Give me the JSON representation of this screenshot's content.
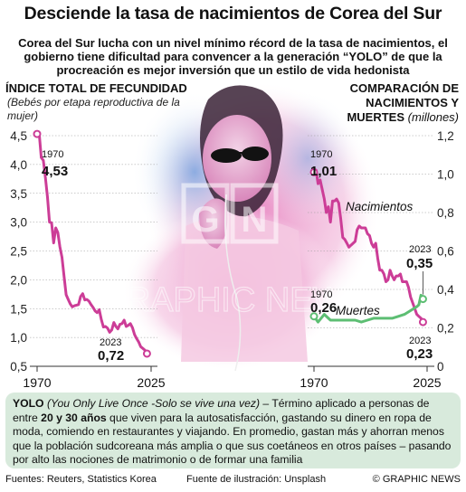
{
  "title": "Desciende la tasa de nacimientos de Corea del Sur",
  "subtitle": "Corea del Sur lucha con un nivel mínimo récord de la tasa de nacimientos, el gobierno tiene dificultad para convencer a la generación “YOLO” de que la procreación es mejor inversión que un estilo de vida hedonista",
  "watermark": "GRAPHIC NEWS",
  "colors": {
    "birth_line": "#cc3d97",
    "death_line": "#5dbe73",
    "note_bg": "#d8eadc",
    "photo_pink": "#e98fc6",
    "photo_blue": "#7aa6e0"
  },
  "note": {
    "term": "YOLO",
    "term_expansion": "(You Only Live Once -Solo se vive una vez)",
    "text_1": " – Término aplicado a personas de entre ",
    "age_range": "20 y 30 años",
    "text_2": " que viven para la autosatisfacción, gastando su dinero en ropa de moda, comiendo en restaurantes y viajando. En promedio, gastan más y ahorran menos que la población sudcoreana más amplia o que sus coetáneos en otros países – pasando por alto las nociones de matrimonio o de formar una familia"
  },
  "footer": {
    "sources": "Fuentes: Reuters, Statistics Korea",
    "illustration": "Fuente de ilustración: Unsplash",
    "credit": "© GRAPHIC NEWS"
  },
  "chart_data": [
    {
      "type": "line",
      "title": "ÍNDICE TOTAL DE FECUNDIDAD",
      "subtitle": "(Bebés por etapa reproductiva de la mujer)",
      "xlim": [
        1970,
        2025
      ],
      "ylim": [
        0.5,
        4.5
      ],
      "yticks": [
        "0,5",
        "1,0",
        "1,5",
        "2,0",
        "2,5",
        "3,0",
        "3,5",
        "4,0",
        "4,5"
      ],
      "xticks": [
        "1970",
        "2025"
      ],
      "series": [
        {
          "name": "",
          "x": [
            1970,
            1971,
            1972,
            1973,
            1974,
            1975,
            1976,
            1977,
            1978,
            1979,
            1980,
            1981,
            1982,
            1983,
            1984,
            1985,
            1986,
            1987,
            1988,
            1989,
            1990,
            1991,
            1992,
            1993,
            1994,
            1995,
            1996,
            1997,
            1998,
            1999,
            2000,
            2001,
            2002,
            2003,
            2004,
            2005,
            2006,
            2007,
            2008,
            2009,
            2010,
            2011,
            2012,
            2013,
            2014,
            2015,
            2016,
            2017,
            2018,
            2019,
            2020,
            2021,
            2022,
            2023
          ],
          "values": [
            4.53,
            4.54,
            4.12,
            4.07,
            3.77,
            3.43,
            3.0,
            2.99,
            2.64,
            2.9,
            2.82,
            2.57,
            2.39,
            2.06,
            1.74,
            1.66,
            1.58,
            1.53,
            1.55,
            1.56,
            1.57,
            1.71,
            1.76,
            1.65,
            1.66,
            1.63,
            1.57,
            1.52,
            1.46,
            1.43,
            1.48,
            1.31,
            1.18,
            1.19,
            1.16,
            1.09,
            1.13,
            1.26,
            1.19,
            1.15,
            1.23,
            1.24,
            1.3,
            1.19,
            1.21,
            1.24,
            1.17,
            1.05,
            0.98,
            0.92,
            0.84,
            0.81,
            0.78,
            0.72
          ]
        }
      ],
      "annotations": [
        {
          "year": "1970",
          "value": "4,53"
        },
        {
          "year": "2023",
          "value": "0,72"
        }
      ]
    },
    {
      "type": "line",
      "title": "COMPARACIÓN DE NACIMIENTOS Y MUERTES",
      "unit": "(millones)",
      "xlim": [
        1970,
        2025
      ],
      "ylim": [
        0,
        1.2
      ],
      "yticks": [
        "0",
        "0,2",
        "0,4",
        "0,6",
        "0,8",
        "1,0",
        "1,2"
      ],
      "xticks": [
        "1970",
        "2025"
      ],
      "series": [
        {
          "name": "Nacimientos",
          "x": [
            1970,
            1971,
            1972,
            1973,
            1974,
            1975,
            1976,
            1977,
            1978,
            1979,
            1980,
            1981,
            1982,
            1983,
            1984,
            1985,
            1986,
            1987,
            1988,
            1989,
            1990,
            1991,
            1992,
            1993,
            1994,
            1995,
            1996,
            1997,
            1998,
            1999,
            2000,
            2001,
            2002,
            2003,
            2004,
            2005,
            2006,
            2007,
            2008,
            2009,
            2010,
            2011,
            2012,
            2013,
            2014,
            2015,
            2016,
            2017,
            2018,
            2019,
            2020,
            2021,
            2022,
            2023
          ],
          "values": [
            1.01,
            1.02,
            0.95,
            0.97,
            0.92,
            0.87,
            0.8,
            0.83,
            0.75,
            0.86,
            0.86,
            0.87,
            0.85,
            0.77,
            0.67,
            0.66,
            0.64,
            0.62,
            0.63,
            0.64,
            0.65,
            0.71,
            0.73,
            0.72,
            0.72,
            0.72,
            0.69,
            0.68,
            0.64,
            0.62,
            0.64,
            0.56,
            0.5,
            0.5,
            0.48,
            0.44,
            0.45,
            0.5,
            0.47,
            0.45,
            0.47,
            0.47,
            0.48,
            0.44,
            0.44,
            0.44,
            0.41,
            0.36,
            0.33,
            0.3,
            0.27,
            0.26,
            0.25,
            0.23
          ]
        },
        {
          "name": "Muertes",
          "x": [
            1970,
            1972,
            1975,
            1978,
            1981,
            1984,
            1987,
            1990,
            1993,
            1996,
            1999,
            2002,
            2005,
            2008,
            2011,
            2014,
            2017,
            2020,
            2021,
            2022,
            2023
          ],
          "values": [
            0.26,
            0.23,
            0.27,
            0.24,
            0.24,
            0.24,
            0.24,
            0.24,
            0.23,
            0.24,
            0.25,
            0.25,
            0.25,
            0.25,
            0.26,
            0.27,
            0.29,
            0.31,
            0.32,
            0.37,
            0.35
          ]
        }
      ],
      "annotations": [
        {
          "year": "1970",
          "value": "1,01",
          "series": "Nacimientos"
        },
        {
          "year": "1970",
          "value": "0,26",
          "series": "Muertes"
        },
        {
          "year": "2023",
          "value": "0,35",
          "series": "Muertes"
        },
        {
          "year": "2023",
          "value": "0,23",
          "series": "Nacimientos"
        }
      ]
    }
  ]
}
